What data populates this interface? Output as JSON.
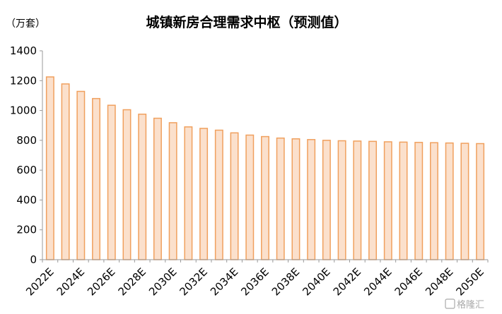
{
  "chart_data": {
    "type": "bar",
    "title": "城镇新房合理需求中枢（预测值）",
    "unit": "（万套）",
    "xlabel": "",
    "ylabel": "",
    "ylim": [
      0,
      1400
    ],
    "yticks": [
      0,
      200,
      400,
      600,
      800,
      1000,
      1200,
      1400
    ],
    "grid": false,
    "categories": [
      "2022E",
      "2023E",
      "2024E",
      "2025E",
      "2026E",
      "2027E",
      "2028E",
      "2029E",
      "2030E",
      "2031E",
      "2032E",
      "2033E",
      "2034E",
      "2035E",
      "2036E",
      "2037E",
      "2038E",
      "2039E",
      "2040E",
      "2041E",
      "2042E",
      "2043E",
      "2044E",
      "2045E",
      "2046E",
      "2047E",
      "2048E",
      "2049E",
      "2050E"
    ],
    "x_tick_labels": [
      "2022E",
      "2024E",
      "2026E",
      "2028E",
      "2030E",
      "2032E",
      "2034E",
      "2036E",
      "2038E",
      "2040E",
      "2042E",
      "2044E",
      "2046E",
      "2048E",
      "2050E"
    ],
    "values": [
      1225,
      1178,
      1128,
      1080,
      1035,
      1005,
      975,
      948,
      918,
      890,
      880,
      868,
      850,
      835,
      825,
      815,
      810,
      805,
      800,
      797,
      795,
      793,
      790,
      788,
      786,
      784,
      782,
      780,
      778
    ],
    "bar_fill": "#fbe0cc",
    "bar_stroke": "#f0a05e"
  },
  "watermark": "格隆汇"
}
